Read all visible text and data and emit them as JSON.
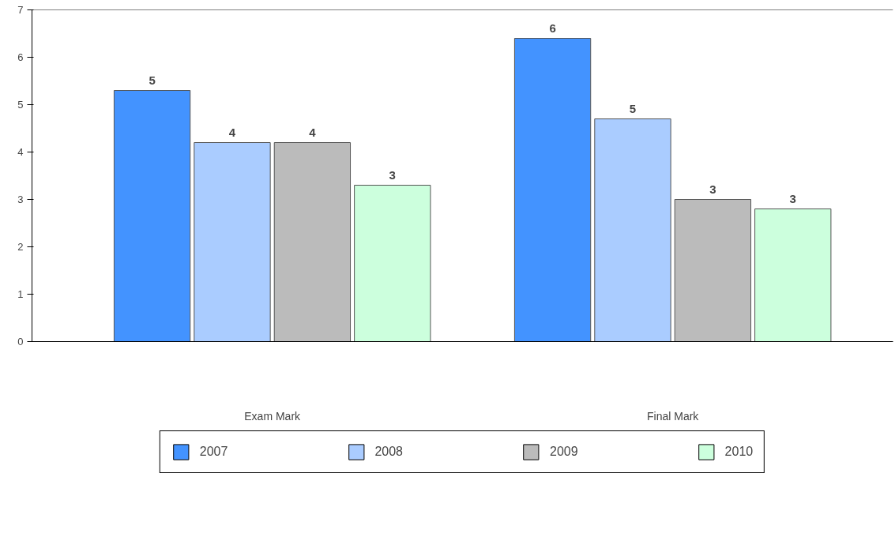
{
  "chart_data": {
    "type": "bar",
    "categories": [
      "Exam Mark",
      "Final Mark"
    ],
    "series": [
      {
        "name": "2007",
        "color": "#4393ff",
        "values": [
          5.3,
          6.4
        ],
        "value_labels": [
          "5",
          "6"
        ]
      },
      {
        "name": "2008",
        "color": "#aaccff",
        "values": [
          4.2,
          4.7
        ],
        "value_labels": [
          "4",
          "5"
        ]
      },
      {
        "name": "2009",
        "color": "#bbbbbb",
        "values": [
          4.2,
          3.0
        ],
        "value_labels": [
          "4",
          "3"
        ]
      },
      {
        "name": "2010",
        "color": "#ccffdd",
        "values": [
          3.3,
          2.8
        ],
        "value_labels": [
          "3",
          "3"
        ]
      }
    ],
    "ylim": [
      0,
      7
    ],
    "yticks": [
      0,
      1,
      2,
      3,
      4,
      5,
      6,
      7
    ],
    "grid": false,
    "legend": "bottom"
  }
}
